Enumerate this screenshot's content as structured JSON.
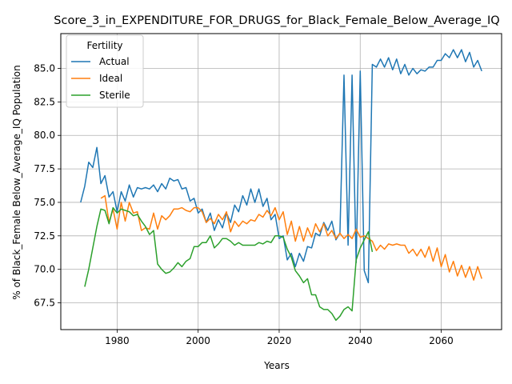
{
  "chart_data": {
    "type": "line",
    "title": "Score_3_in_EXPENDITURE_FOR_DRUGS_for_Black_Female_Below_Average_IQ",
    "xlabel": "Years",
    "ylabel": "% of Black_Female Below_Average_IQ Population",
    "xlim": [
      1966.1,
      2074.9
    ],
    "ylim": [
      65.5,
      87.6
    ],
    "xticks": [
      1980,
      2000,
      2020,
      2040,
      2060
    ],
    "yticks": [
      67.5,
      70.0,
      72.5,
      75.0,
      77.5,
      80.0,
      82.5,
      85.0
    ],
    "grid": true,
    "legend": {
      "title": "Fertility",
      "position": "top-left"
    },
    "series": [
      {
        "name": "Actual",
        "color": "#1f77b4",
        "x": [
          1971,
          1972,
          1973,
          1974,
          1975,
          1976,
          1977,
          1978,
          1979,
          1980,
          1981,
          1982,
          1983,
          1984,
          1985,
          1986,
          1987,
          1988,
          1989,
          1990,
          1991,
          1992,
          1993,
          1994,
          1995,
          1996,
          1997,
          1998,
          1999,
          2000,
          2001,
          2002,
          2003,
          2004,
          2005,
          2006,
          2007,
          2008,
          2009,
          2010,
          2011,
          2012,
          2013,
          2014,
          2015,
          2016,
          2017,
          2018,
          2019,
          2020,
          2021,
          2022,
          2023,
          2024,
          2025,
          2026,
          2027,
          2028,
          2029,
          2030,
          2031,
          2032,
          2033,
          2034,
          2035,
          2036,
          2037,
          2038,
          2039,
          2040,
          2041,
          2042,
          2043,
          2044,
          2045,
          2046,
          2047,
          2048,
          2049,
          2050,
          2051,
          2052,
          2053,
          2054,
          2055,
          2056,
          2057,
          2058,
          2059,
          2060,
          2061,
          2062,
          2063,
          2064,
          2065,
          2066,
          2067,
          2068,
          2069,
          2070
        ],
        "y": [
          75.0,
          76.2,
          78.0,
          77.6,
          79.1,
          76.4,
          77.0,
          75.4,
          75.8,
          74.3,
          75.8,
          75.1,
          76.3,
          75.4,
          76.1,
          76.0,
          76.1,
          76.0,
          76.3,
          75.8,
          76.4,
          76.0,
          76.8,
          76.6,
          76.7,
          76.0,
          76.1,
          75.1,
          75.3,
          74.2,
          74.5,
          73.5,
          74.2,
          72.9,
          73.7,
          73.1,
          74.2,
          73.5,
          74.8,
          74.3,
          75.5,
          74.8,
          76.0,
          75.0,
          76.0,
          74.7,
          75.3,
          73.7,
          74.1,
          72.3,
          72.5,
          70.7,
          71.2,
          70.2,
          71.2,
          70.6,
          71.7,
          71.6,
          72.7,
          72.5,
          73.5,
          72.9,
          73.6,
          72.2,
          72.7,
          84.5,
          71.8,
          84.5,
          70.5,
          84.8,
          69.9,
          69.0,
          85.3,
          85.1,
          85.7,
          85.1,
          85.8,
          84.9,
          85.7,
          84.6,
          85.3,
          84.5,
          85.0,
          84.6,
          84.9,
          84.8,
          85.1,
          85.1,
          85.6,
          85.6,
          86.1,
          85.8,
          86.4,
          85.8,
          86.4,
          85.5,
          86.2,
          85.1,
          85.6,
          84.8
        ]
      },
      {
        "name": "Ideal",
        "color": "#ff7f0e",
        "x": [
          1976,
          1977,
          1978,
          1979,
          1980,
          1981,
          1982,
          1983,
          1984,
          1985,
          1986,
          1987,
          1988,
          1989,
          1990,
          1991,
          1992,
          1993,
          1994,
          1995,
          1996,
          1997,
          1998,
          1999,
          2000,
          2001,
          2002,
          2003,
          2004,
          2005,
          2006,
          2007,
          2008,
          2009,
          2010,
          2011,
          2012,
          2013,
          2014,
          2015,
          2016,
          2017,
          2018,
          2019,
          2020,
          2021,
          2022,
          2023,
          2024,
          2025,
          2026,
          2027,
          2028,
          2029,
          2030,
          2031,
          2032,
          2033,
          2034,
          2035,
          2036,
          2037,
          2038,
          2039,
          2040,
          2041,
          2042,
          2043,
          2044,
          2045,
          2046,
          2047,
          2048,
          2049,
          2050,
          2051,
          2052,
          2053,
          2054,
          2055,
          2056,
          2057,
          2058,
          2059,
          2060,
          2061,
          2062,
          2063,
          2064,
          2065,
          2066,
          2067,
          2068,
          2069,
          2070
        ],
        "y": [
          75.3,
          75.5,
          73.5,
          74.5,
          73.0,
          75.0,
          73.6,
          75.0,
          74.2,
          74.3,
          72.9,
          73.1,
          73.0,
          74.2,
          73.0,
          74.0,
          73.7,
          74.0,
          74.5,
          74.5,
          74.6,
          74.4,
          74.3,
          74.6,
          74.6,
          74.3,
          73.5,
          73.8,
          73.4,
          74.1,
          73.7,
          74.3,
          72.8,
          73.6,
          73.2,
          73.6,
          73.4,
          73.7,
          73.6,
          74.1,
          73.9,
          74.4,
          74.0,
          74.6,
          73.7,
          74.3,
          72.6,
          73.6,
          72.1,
          73.2,
          72.1,
          73.1,
          72.4,
          73.4,
          72.8,
          73.4,
          72.5,
          72.9,
          72.3,
          72.7,
          72.3,
          72.6,
          72.3,
          73.0,
          72.4,
          72.5,
          72.3,
          72.1,
          71.4,
          71.8,
          71.5,
          71.9,
          71.8,
          71.9,
          71.8,
          71.8,
          71.2,
          71.5,
          71.0,
          71.5,
          70.9,
          71.7,
          70.6,
          71.6,
          70.2,
          71.1,
          69.8,
          70.6,
          69.5,
          70.3,
          69.4,
          70.2,
          69.2,
          70.2,
          69.3
        ]
      },
      {
        "name": "Sterile",
        "color": "#2ca02c",
        "x": [
          1972,
          1973,
          1974,
          1975,
          1976,
          1977,
          1978,
          1979,
          1980,
          1981,
          1982,
          1983,
          1984,
          1985,
          1986,
          1987,
          1988,
          1989,
          1990,
          1991,
          1992,
          1993,
          1994,
          1995,
          1996,
          1997,
          1998,
          1999,
          2000,
          2001,
          2002,
          2003,
          2004,
          2005,
          2006,
          2007,
          2008,
          2009,
          2010,
          2011,
          2012,
          2013,
          2014,
          2015,
          2016,
          2017,
          2018,
          2019,
          2020,
          2021,
          2022,
          2023,
          2024,
          2025,
          2026,
          2027,
          2028,
          2029,
          2030,
          2031,
          2032,
          2033,
          2034,
          2035,
          2036,
          2037,
          2038,
          2039,
          2040,
          2041,
          2042,
          2043
        ],
        "y": [
          68.7,
          70.0,
          71.6,
          73.2,
          74.5,
          74.4,
          73.4,
          74.6,
          74.2,
          74.5,
          74.4,
          74.3,
          74.0,
          74.1,
          73.6,
          73.2,
          72.6,
          72.9,
          70.4,
          70.0,
          69.7,
          69.8,
          70.1,
          70.5,
          70.2,
          70.6,
          70.8,
          71.7,
          71.7,
          72.0,
          72.0,
          72.5,
          71.6,
          71.9,
          72.3,
          72.3,
          72.1,
          71.8,
          72.0,
          71.8,
          71.8,
          71.8,
          71.8,
          72.0,
          71.9,
          72.1,
          72.0,
          72.5,
          72.5,
          72.4,
          71.5,
          70.9,
          69.9,
          69.5,
          69.0,
          69.3,
          68.1,
          68.1,
          67.2,
          67.0,
          67.0,
          66.7,
          66.2,
          66.5,
          67.0,
          67.2,
          66.9,
          70.7,
          71.6,
          72.2,
          72.8,
          71.3
        ]
      }
    ]
  }
}
